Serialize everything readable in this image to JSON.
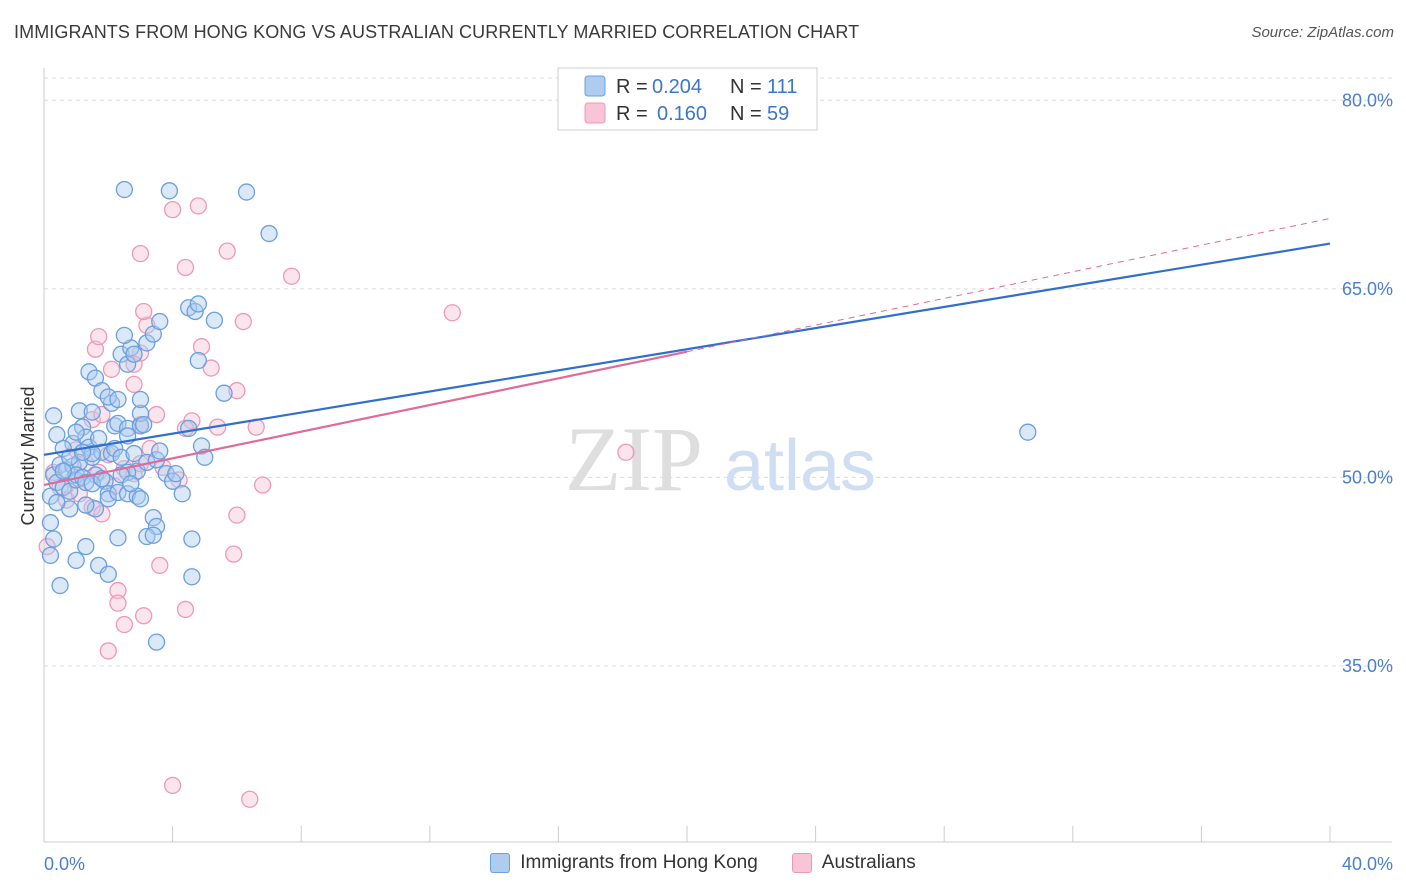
{
  "chart_data": {
    "type": "scatter",
    "title": "IMMIGRANTS FROM HONG KONG VS AUSTRALIAN CURRENTLY MARRIED CORRELATION CHART",
    "source": "Source: ZipAtlas.com",
    "ylabel": "Currently Married",
    "xlim": [
      0,
      40
    ],
    "ylim": [
      21,
      84
    ],
    "x_tick_labels": [
      "0.0%",
      "40.0%"
    ],
    "y_ticks": [
      {
        "value": 80,
        "label": "80.0%"
      },
      {
        "value": 65,
        "label": "65.0%"
      },
      {
        "value": 50,
        "label": "50.0%"
      },
      {
        "value": 35,
        "label": "35.0%"
      }
    ],
    "watermark": {
      "zip": "ZIP",
      "atlas": "atlas"
    },
    "legend": {
      "r_label": "R =",
      "n_label": "N =",
      "entries": [
        {
          "r": "0.204",
          "n": "111"
        },
        {
          "r": "0.160",
          "n": "59"
        }
      ]
    },
    "series": [
      {
        "name": "Immigrants from Hong Kong",
        "color": "#6a9fe0",
        "fill": "#aecbf0",
        "line_color": "#2f6fce",
        "trend": {
          "x0": 0,
          "y0": 51.8,
          "x1": 40,
          "y1": 68.6
        },
        "points": [
          [
            0.2,
            48.5
          ],
          [
            0.3,
            50.2
          ],
          [
            0.4,
            49.6
          ],
          [
            0.5,
            51.0
          ],
          [
            0.6,
            49.2
          ],
          [
            0.7,
            50.6
          ],
          [
            0.8,
            48.9
          ],
          [
            0.9,
            50.9
          ],
          [
            1.0,
            49.8
          ],
          [
            1.1,
            51.2
          ],
          [
            0.9,
            52.7
          ],
          [
            1.2,
            54.0
          ],
          [
            1.3,
            53.2
          ],
          [
            1.4,
            52.4
          ],
          [
            1.5,
            51.6
          ],
          [
            1.6,
            50.2
          ],
          [
            1.7,
            53.1
          ],
          [
            1.8,
            52.0
          ],
          [
            1.9,
            49.7
          ],
          [
            2.0,
            48.7
          ],
          [
            2.1,
            51.9
          ],
          [
            2.2,
            54.1
          ],
          [
            1.1,
            55.3
          ],
          [
            1.4,
            58.4
          ],
          [
            1.6,
            57.9
          ],
          [
            1.8,
            56.9
          ],
          [
            2.1,
            55.9
          ],
          [
            1.5,
            55.2
          ],
          [
            2.0,
            56.4
          ],
          [
            2.3,
            56.2
          ],
          [
            2.4,
            59.8
          ],
          [
            2.6,
            59.0
          ],
          [
            2.7,
            60.3
          ],
          [
            2.8,
            59.8
          ],
          [
            2.5,
            61.3
          ],
          [
            3.2,
            60.7
          ],
          [
            3.4,
            61.4
          ],
          [
            3.6,
            62.4
          ],
          [
            4.5,
            63.5
          ],
          [
            4.7,
            63.2
          ],
          [
            4.8,
            63.8
          ],
          [
            5.3,
            62.5
          ],
          [
            4.8,
            59.3
          ],
          [
            5.6,
            56.7
          ],
          [
            2.5,
            72.9
          ],
          [
            3.9,
            72.8
          ],
          [
            6.3,
            72.7
          ],
          [
            7.0,
            69.4
          ],
          [
            2.3,
            54.3
          ],
          [
            2.6,
            53.9
          ],
          [
            3.0,
            54.1
          ],
          [
            3.0,
            55.1
          ],
          [
            3.0,
            56.2
          ],
          [
            2.6,
            53.3
          ],
          [
            2.2,
            52.3
          ],
          [
            2.4,
            51.6
          ],
          [
            2.8,
            51.9
          ],
          [
            2.9,
            50.5
          ],
          [
            2.6,
            50.4
          ],
          [
            3.2,
            51.2
          ],
          [
            3.5,
            51.4
          ],
          [
            3.6,
            52.1
          ],
          [
            3.8,
            50.3
          ],
          [
            4.0,
            49.7
          ],
          [
            4.1,
            50.3
          ],
          [
            4.3,
            48.7
          ],
          [
            4.5,
            53.9
          ],
          [
            4.9,
            52.5
          ],
          [
            5.0,
            51.6
          ],
          [
            0.3,
            54.9
          ],
          [
            0.4,
            53.4
          ],
          [
            0.6,
            52.3
          ],
          [
            0.8,
            51.6
          ],
          [
            1.0,
            50.2
          ],
          [
            1.2,
            50.0
          ],
          [
            1.3,
            49.6
          ],
          [
            1.5,
            49.5
          ],
          [
            1.8,
            49.9
          ],
          [
            2.0,
            48.3
          ],
          [
            1.6,
            47.5
          ],
          [
            2.3,
            48.8
          ],
          [
            2.6,
            48.7
          ],
          [
            2.9,
            48.5
          ],
          [
            3.0,
            48.3
          ],
          [
            3.4,
            46.8
          ],
          [
            3.5,
            46.1
          ],
          [
            2.3,
            45.2
          ],
          [
            3.2,
            45.3
          ],
          [
            3.4,
            45.4
          ],
          [
            4.6,
            45.1
          ],
          [
            0.2,
            46.4
          ],
          [
            0.3,
            45.1
          ],
          [
            0.5,
            41.4
          ],
          [
            1.0,
            43.4
          ],
          [
            1.3,
            44.5
          ],
          [
            1.7,
            43.0
          ],
          [
            2.0,
            42.3
          ],
          [
            4.6,
            42.1
          ],
          [
            3.5,
            36.9
          ],
          [
            0.8,
            47.5
          ],
          [
            1.3,
            47.8
          ],
          [
            30.6,
            53.6
          ],
          [
            0.2,
            43.8
          ],
          [
            1.5,
            51.9
          ],
          [
            2.4,
            50.2
          ],
          [
            0.6,
            50.5
          ],
          [
            1.2,
            52.0
          ],
          [
            0.4,
            48.0
          ],
          [
            2.7,
            49.5
          ],
          [
            1.0,
            53.6
          ],
          [
            3.1,
            54.2
          ]
        ]
      },
      {
        "name": "Australians",
        "color": "#ee98b4",
        "fill": "#f7c5d6",
        "line_color": "#e06a99",
        "trend": {
          "x0": 0,
          "y0": 49.4,
          "x1": 40,
          "y1": 70.6
        },
        "trend_solid_end_x": 20,
        "points": [
          [
            0.3,
            50.4
          ],
          [
            0.5,
            49.2
          ],
          [
            0.7,
            48.2
          ],
          [
            0.9,
            49.8
          ],
          [
            1.1,
            48.7
          ],
          [
            1.3,
            51.1
          ],
          [
            1.5,
            47.6
          ],
          [
            1.7,
            50.4
          ],
          [
            2.0,
            51.8
          ],
          [
            2.2,
            49.3
          ],
          [
            2.5,
            50.7
          ],
          [
            2.8,
            50.3
          ],
          [
            3.0,
            51.1
          ],
          [
            3.3,
            52.3
          ],
          [
            3.7,
            50.8
          ],
          [
            4.2,
            49.8
          ],
          [
            1.0,
            52.2
          ],
          [
            1.5,
            54.6
          ],
          [
            1.8,
            55.0
          ],
          [
            2.1,
            58.6
          ],
          [
            1.6,
            60.2
          ],
          [
            1.7,
            61.2
          ],
          [
            3.2,
            62.1
          ],
          [
            3.1,
            63.2
          ],
          [
            4.9,
            60.4
          ],
          [
            5.2,
            58.7
          ],
          [
            5.4,
            54.0
          ],
          [
            3.0,
            54.2
          ],
          [
            3.5,
            55.0
          ],
          [
            2.8,
            57.4
          ],
          [
            3.0,
            59.9
          ],
          [
            2.8,
            59.0
          ],
          [
            4.6,
            54.5
          ],
          [
            4.4,
            53.9
          ],
          [
            4.4,
            66.7
          ],
          [
            5.7,
            68.0
          ],
          [
            4.0,
            71.3
          ],
          [
            4.8,
            71.6
          ],
          [
            3.0,
            67.8
          ],
          [
            7.7,
            66.0
          ],
          [
            6.2,
            62.4
          ],
          [
            6.0,
            56.9
          ],
          [
            6.6,
            54.0
          ],
          [
            12.7,
            63.1
          ],
          [
            6.8,
            49.4
          ],
          [
            6.0,
            47.0
          ],
          [
            5.9,
            43.9
          ],
          [
            4.4,
            39.5
          ],
          [
            3.6,
            43.0
          ],
          [
            2.3,
            41.0
          ],
          [
            2.3,
            40.0
          ],
          [
            2.5,
            38.3
          ],
          [
            3.1,
            39.0
          ],
          [
            2.0,
            36.2
          ],
          [
            4.0,
            25.5
          ],
          [
            6.4,
            24.4
          ],
          [
            18.1,
            52.0
          ],
          [
            0.1,
            44.5
          ],
          [
            1.8,
            47.1
          ]
        ]
      }
    ]
  }
}
